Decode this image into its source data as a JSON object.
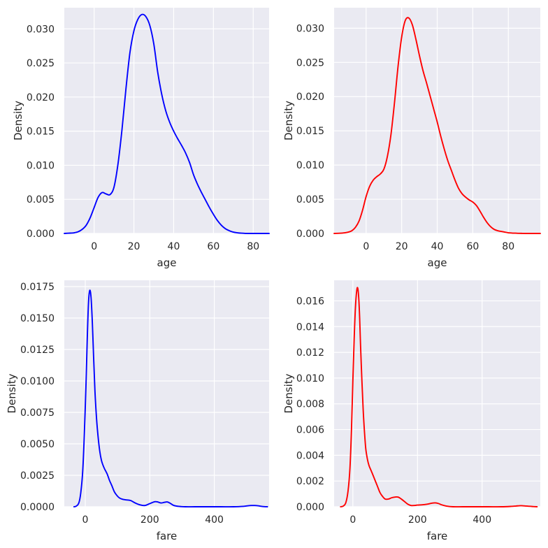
{
  "chart_data": [
    {
      "type": "line",
      "title": "",
      "xlabel": "age",
      "ylabel": "Density",
      "color": "#0000ff",
      "xlim": [
        -15,
        88
      ],
      "ylim": [
        0,
        0.0331
      ],
      "xticks": [
        0,
        20,
        40,
        60,
        80
      ],
      "yticks": [
        0.0,
        0.005,
        0.01,
        0.015,
        0.02,
        0.025,
        0.03
      ],
      "ytick_labels": [
        "0.000",
        "0.005",
        "0.010",
        "0.015",
        "0.020",
        "0.025",
        "0.030"
      ],
      "grid": true,
      "x": [
        -15,
        -12,
        -10,
        -8,
        -6,
        -4,
        -2,
        0,
        2,
        4,
        6,
        8,
        10,
        12,
        14,
        16,
        18,
        20,
        22,
        24,
        26,
        28,
        30,
        32,
        34,
        36,
        38,
        40,
        42,
        44,
        46,
        48,
        50,
        52,
        54,
        56,
        58,
        60,
        62,
        64,
        66,
        68,
        70,
        72,
        74,
        76,
        78,
        80,
        82,
        84,
        86,
        88
      ],
      "y": [
        0.0,
        5e-05,
        0.0001,
        0.00025,
        0.0006,
        0.0012,
        0.0023,
        0.0038,
        0.0053,
        0.006,
        0.0058,
        0.0057,
        0.0068,
        0.0102,
        0.0152,
        0.0212,
        0.0265,
        0.0297,
        0.0314,
        0.0321,
        0.0318,
        0.0305,
        0.0278,
        0.0236,
        0.0204,
        0.018,
        0.0163,
        0.015,
        0.0139,
        0.0129,
        0.0118,
        0.0104,
        0.0086,
        0.0072,
        0.006,
        0.0049,
        0.0038,
        0.0028,
        0.0019,
        0.0012,
        0.0007,
        0.0004,
        0.0002,
        0.0001,
        4e-05,
        1e-05,
        0.0,
        0.0,
        0.0,
        0.0,
        0.0,
        0.0
      ]
    },
    {
      "type": "line",
      "title": "",
      "xlabel": "age",
      "ylabel": "Density",
      "color": "#ff0000",
      "xlim": [
        -18,
        98
      ],
      "ylim": [
        0,
        0.033
      ],
      "xticks": [
        0,
        20,
        40,
        60,
        80
      ],
      "yticks": [
        0.0,
        0.005,
        0.01,
        0.015,
        0.02,
        0.025,
        0.03
      ],
      "ytick_labels": [
        "0.000",
        "0.005",
        "0.010",
        "0.015",
        "0.020",
        "0.025",
        "0.030"
      ],
      "grid": true,
      "x": [
        -18,
        -15,
        -12,
        -10,
        -8,
        -6,
        -4,
        -2,
        0,
        2,
        4,
        6,
        8,
        10,
        12,
        14,
        16,
        18,
        20,
        22,
        24,
        26,
        28,
        30,
        32,
        34,
        36,
        38,
        40,
        42,
        44,
        46,
        48,
        50,
        52,
        54,
        56,
        58,
        60,
        62,
        64,
        66,
        68,
        70,
        72,
        74,
        76,
        78,
        80,
        82,
        84,
        86,
        88,
        90,
        92,
        94,
        96,
        98
      ],
      "y": [
        0.0,
        3e-05,
        0.0001,
        0.0002,
        0.0004,
        0.0009,
        0.0018,
        0.0034,
        0.0054,
        0.0069,
        0.0078,
        0.0083,
        0.0087,
        0.0094,
        0.0113,
        0.0145,
        0.0192,
        0.0245,
        0.0287,
        0.0311,
        0.0315,
        0.0305,
        0.0284,
        0.026,
        0.0238,
        0.022,
        0.0201,
        0.0182,
        0.0163,
        0.0142,
        0.0123,
        0.0106,
        0.0092,
        0.0078,
        0.0066,
        0.0058,
        0.0053,
        0.0049,
        0.0046,
        0.0041,
        0.0033,
        0.0024,
        0.0016,
        0.001,
        0.0006,
        0.0004,
        0.0003,
        0.0002,
        0.0001,
        6e-05,
        4e-05,
        2e-05,
        1e-05,
        0.0,
        0.0,
        0.0,
        0.0,
        0.0
      ]
    },
    {
      "type": "line",
      "title": "",
      "xlabel": "fare",
      "ylabel": "Density",
      "color": "#0000ff",
      "xlim": [
        -65,
        570
      ],
      "ylim": [
        0,
        0.018
      ],
      "xticks": [
        0,
        200,
        400
      ],
      "yticks": [
        0.0,
        0.0025,
        0.005,
        0.0075,
        0.01,
        0.0125,
        0.015,
        0.0175
      ],
      "ytick_labels": [
        "0.0000",
        "0.0025",
        "0.0050",
        "0.0075",
        "0.0100",
        "0.0125",
        "0.0150",
        "0.0175"
      ],
      "grid": true,
      "x": [
        -35,
        -28,
        -20,
        -14,
        -8,
        -3,
        2,
        6,
        10,
        14,
        18,
        22,
        26,
        30,
        35,
        40,
        45,
        50,
        55,
        60,
        68,
        75,
        82,
        90,
        98,
        106,
        115,
        125,
        140,
        155,
        170,
        185,
        200,
        215,
        225,
        235,
        245,
        255,
        265,
        275,
        290,
        310,
        340,
        380,
        420,
        460,
        490,
        505,
        515,
        525,
        535,
        545,
        555,
        565
      ],
      "y": [
        0.0,
        5e-05,
        0.0003,
        0.0011,
        0.0028,
        0.0057,
        0.0095,
        0.0132,
        0.0162,
        0.0172,
        0.0166,
        0.0146,
        0.0118,
        0.0092,
        0.007,
        0.0055,
        0.0044,
        0.0037,
        0.0033,
        0.003,
        0.0026,
        0.0021,
        0.0017,
        0.0012,
        0.0009,
        0.0007,
        0.0006,
        0.00055,
        0.0005,
        0.0003,
        0.00015,
        0.0001,
        0.00025,
        0.0004,
        0.00038,
        0.0003,
        0.00035,
        0.00038,
        0.00025,
        0.0001,
        3e-05,
        0.0,
        0.0,
        0.0,
        0.0,
        0.0,
        3e-05,
        8e-05,
        0.0001,
        0.0001,
        8e-05,
        4e-05,
        1e-05,
        0.0
      ]
    },
    {
      "type": "line",
      "title": "",
      "xlabel": "fare",
      "ylabel": "Density",
      "color": "#ff0000",
      "xlim": [
        -58,
        580
      ],
      "ylim": [
        0,
        0.0176
      ],
      "xticks": [
        0,
        200,
        400
      ],
      "yticks": [
        0.0,
        0.002,
        0.004,
        0.006,
        0.008,
        0.01,
        0.012,
        0.014,
        0.016
      ],
      "ytick_labels": [
        "0.000",
        "0.002",
        "0.004",
        "0.006",
        "0.008",
        "0.010",
        "0.012",
        "0.014",
        "0.016"
      ],
      "grid": true,
      "x": [
        -38,
        -30,
        -22,
        -15,
        -9,
        -4,
        0,
        4,
        8,
        12,
        15,
        18,
        21,
        24,
        28,
        32,
        36,
        40,
        45,
        50,
        55,
        60,
        68,
        76,
        84,
        92,
        100,
        110,
        120,
        130,
        140,
        150,
        160,
        170,
        180,
        190,
        200,
        215,
        230,
        245,
        255,
        265,
        275,
        290,
        310,
        340,
        380,
        420,
        460,
        490,
        505,
        515,
        525,
        535,
        545,
        555,
        570
      ],
      "y": [
        0.0,
        5e-05,
        0.0003,
        0.0012,
        0.003,
        0.0062,
        0.0098,
        0.013,
        0.0155,
        0.0168,
        0.017,
        0.0163,
        0.0147,
        0.0124,
        0.0098,
        0.0075,
        0.0058,
        0.0045,
        0.0037,
        0.0032,
        0.0029,
        0.0026,
        0.0021,
        0.0016,
        0.0011,
        0.0008,
        0.0006,
        0.0006,
        0.0007,
        0.00075,
        0.00075,
        0.0006,
        0.0004,
        0.0002,
        0.0001,
        0.0001,
        0.00013,
        0.00015,
        0.0002,
        0.00028,
        0.0003,
        0.00025,
        0.00015,
        5e-05,
        0.0,
        0.0,
        0.0,
        0.0,
        0.0,
        3e-05,
        6e-05,
        8e-05,
        8e-05,
        6e-05,
        4e-05,
        2e-05,
        0.0
      ]
    }
  ]
}
